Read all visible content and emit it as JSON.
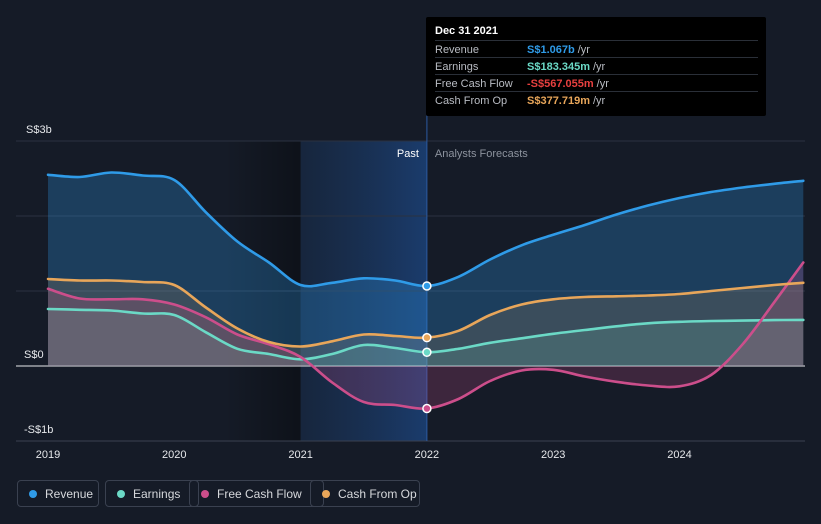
{
  "chart_data": {
    "type": "line",
    "ylabel_ticks": [
      "S$3b",
      "S$0",
      "-S$1b"
    ],
    "y_ticks_values": [
      3000,
      0,
      -1000
    ],
    "ylim": [
      -1000,
      3000
    ],
    "xlim": [
      2019.0,
      2024.98
    ],
    "x_ticks": [
      2019,
      2020,
      2021,
      2022,
      2023,
      2024
    ],
    "x_tick_labels": [
      "2019",
      "2020",
      "2021",
      "2022",
      "2023",
      "2024"
    ],
    "divider_x": 2022.0,
    "highlight_range": [
      2021.0,
      2022.0
    ],
    "past_label": "Past",
    "forecast_label": "Analysts Forecasts",
    "series": [
      {
        "name": "Revenue",
        "color": "#2f9be8",
        "fill": true,
        "points": [
          [
            2019.0,
            2550
          ],
          [
            2019.25,
            2520
          ],
          [
            2019.5,
            2580
          ],
          [
            2019.75,
            2540
          ],
          [
            2020.0,
            2480
          ],
          [
            2020.25,
            2050
          ],
          [
            2020.5,
            1660
          ],
          [
            2020.75,
            1380
          ],
          [
            2021.0,
            1080
          ],
          [
            2021.25,
            1110
          ],
          [
            2021.5,
            1170
          ],
          [
            2021.75,
            1140
          ],
          [
            2022.0,
            1067
          ],
          [
            2022.25,
            1190
          ],
          [
            2022.5,
            1420
          ],
          [
            2022.75,
            1610
          ],
          [
            2023.0,
            1750
          ],
          [
            2023.25,
            1880
          ],
          [
            2023.5,
            2020
          ],
          [
            2023.75,
            2140
          ],
          [
            2024.0,
            2240
          ],
          [
            2024.25,
            2320
          ],
          [
            2024.5,
            2380
          ],
          [
            2024.75,
            2430
          ],
          [
            2024.98,
            2470
          ]
        ]
      },
      {
        "name": "Earnings",
        "color": "#6bd9c6",
        "fill": true,
        "points": [
          [
            2019.0,
            760
          ],
          [
            2019.25,
            750
          ],
          [
            2019.5,
            740
          ],
          [
            2019.75,
            700
          ],
          [
            2020.0,
            680
          ],
          [
            2020.25,
            450
          ],
          [
            2020.5,
            230
          ],
          [
            2020.75,
            160
          ],
          [
            2021.0,
            90
          ],
          [
            2021.25,
            160
          ],
          [
            2021.5,
            280
          ],
          [
            2021.75,
            240
          ],
          [
            2022.0,
            183
          ],
          [
            2022.25,
            230
          ],
          [
            2022.5,
            310
          ],
          [
            2022.75,
            370
          ],
          [
            2023.0,
            430
          ],
          [
            2023.25,
            480
          ],
          [
            2023.5,
            530
          ],
          [
            2023.75,
            570
          ],
          [
            2024.0,
            590
          ],
          [
            2024.25,
            600
          ],
          [
            2024.5,
            605
          ],
          [
            2024.75,
            612
          ],
          [
            2024.98,
            615
          ]
        ]
      },
      {
        "name": "Free Cash Flow",
        "color": "#cc4e8b",
        "fill": true,
        "points": [
          [
            2019.0,
            1030
          ],
          [
            2019.25,
            900
          ],
          [
            2019.5,
            890
          ],
          [
            2019.75,
            890
          ],
          [
            2020.0,
            820
          ],
          [
            2020.25,
            650
          ],
          [
            2020.5,
            420
          ],
          [
            2020.75,
            290
          ],
          [
            2021.0,
            120
          ],
          [
            2021.25,
            -220
          ],
          [
            2021.5,
            -480
          ],
          [
            2021.75,
            -520
          ],
          [
            2022.0,
            -567
          ],
          [
            2022.25,
            -440
          ],
          [
            2022.5,
            -200
          ],
          [
            2022.75,
            -60
          ],
          [
            2023.0,
            -50
          ],
          [
            2023.25,
            -140
          ],
          [
            2023.5,
            -210
          ],
          [
            2023.75,
            -260
          ],
          [
            2024.0,
            -270
          ],
          [
            2024.25,
            -120
          ],
          [
            2024.5,
            290
          ],
          [
            2024.75,
            850
          ],
          [
            2024.98,
            1380
          ]
        ]
      },
      {
        "name": "Cash From Op",
        "color": "#e8a65a",
        "fill": true,
        "points": [
          [
            2019.0,
            1160
          ],
          [
            2019.25,
            1140
          ],
          [
            2019.5,
            1140
          ],
          [
            2019.75,
            1120
          ],
          [
            2020.0,
            1080
          ],
          [
            2020.25,
            780
          ],
          [
            2020.5,
            500
          ],
          [
            2020.75,
            320
          ],
          [
            2021.0,
            260
          ],
          [
            2021.25,
            330
          ],
          [
            2021.5,
            420
          ],
          [
            2021.75,
            400
          ],
          [
            2022.0,
            378
          ],
          [
            2022.25,
            470
          ],
          [
            2022.5,
            680
          ],
          [
            2022.75,
            820
          ],
          [
            2023.0,
            890
          ],
          [
            2023.25,
            920
          ],
          [
            2023.5,
            930
          ],
          [
            2023.75,
            940
          ],
          [
            2024.0,
            960
          ],
          [
            2024.25,
            1000
          ],
          [
            2024.5,
            1040
          ],
          [
            2024.75,
            1080
          ],
          [
            2024.98,
            1110
          ]
        ]
      }
    ],
    "markers_at": 2022.0
  },
  "tooltip": {
    "date": "Dec 31 2021",
    "rows": [
      {
        "label": "Revenue",
        "value": "S$1.067b",
        "unit": "/yr",
        "color": "#2f9be8"
      },
      {
        "label": "Earnings",
        "value": "S$183.345m",
        "unit": "/yr",
        "color": "#6bd9c6"
      },
      {
        "label": "Free Cash Flow",
        "value": "-S$567.055m",
        "unit": "/yr",
        "color": "#e8403f"
      },
      {
        "label": "Cash From Op",
        "value": "S$377.719m",
        "unit": "/yr",
        "color": "#e8a65a"
      }
    ]
  },
  "legend": [
    {
      "label": "Revenue",
      "color": "#2f9be8"
    },
    {
      "label": "Earnings",
      "color": "#6bd9c6"
    },
    {
      "label": "Free Cash Flow",
      "color": "#cc4e8b"
    },
    {
      "label": "Cash From Op",
      "color": "#e8a65a"
    }
  ]
}
